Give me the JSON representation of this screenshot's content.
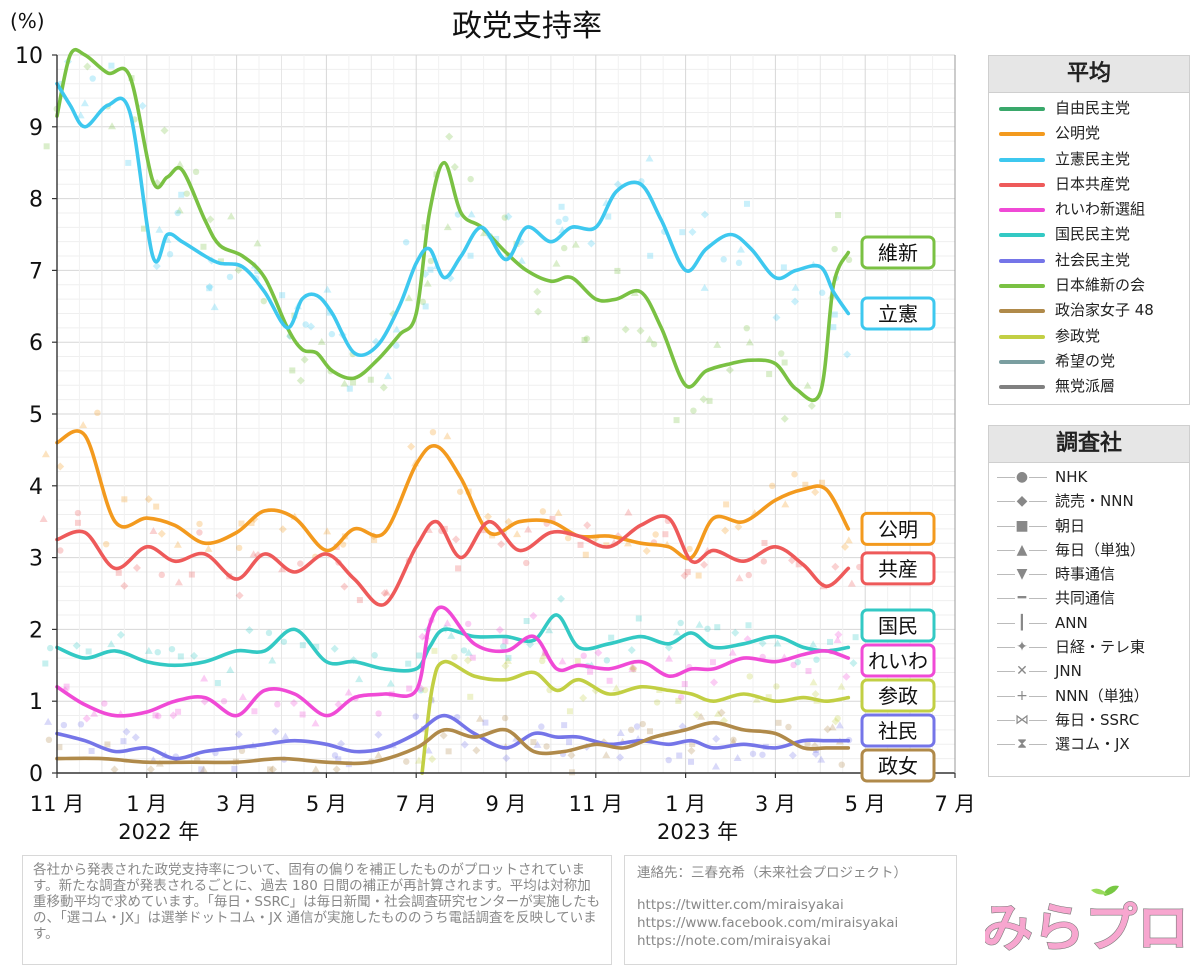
{
  "chart_data": {
    "type": "line",
    "title": "政党支持率",
    "ylabel": "(%)",
    "ylim": [
      0,
      10
    ],
    "yticks": [
      "0",
      "1",
      "2",
      "3",
      "4",
      "5",
      "6",
      "7",
      "8",
      "9",
      "10"
    ],
    "grid": true,
    "x_axis": {
      "range_months": [
        "2021-11",
        "2023-07"
      ],
      "tick_labels": [
        {
          "month": "2021-11",
          "label": "11 月"
        },
        {
          "month": "2022-01",
          "label": "1 月"
        },
        {
          "month": "2022-03",
          "label": "3 月"
        },
        {
          "month": "2022-05",
          "label": "5 月"
        },
        {
          "month": "2022-07",
          "label": "7 月"
        },
        {
          "month": "2022-09",
          "label": "9 月"
        },
        {
          "month": "2022-11",
          "label": "11 月"
        },
        {
          "month": "2023-01",
          "label": "1 月"
        },
        {
          "month": "2023-03",
          "label": "3 月"
        },
        {
          "month": "2023-05",
          "label": "5 月"
        },
        {
          "month": "2023-07",
          "label": "7 月"
        }
      ],
      "year_labels": [
        {
          "month": "2022-01",
          "label": "2022 年"
        },
        {
          "month": "2023-01",
          "label": "2023 年"
        }
      ]
    },
    "series": [
      {
        "name": "日本維新の会",
        "end_label": "維新",
        "color": "#7ac143",
        "x": [
          "2021-11-01",
          "2021-11-10",
          "2021-11-20",
          "2021-12-05",
          "2021-12-20",
          "2022-01-05",
          "2022-01-15",
          "2022-01-25",
          "2022-02-10",
          "2022-02-20",
          "2022-03-05",
          "2022-03-20",
          "2022-04-05",
          "2022-04-15",
          "2022-04-25",
          "2022-05-05",
          "2022-05-20",
          "2022-06-05",
          "2022-06-20",
          "2022-07-01",
          "2022-07-10",
          "2022-07-20",
          "2022-08-01",
          "2022-08-15",
          "2022-09-01",
          "2022-09-15",
          "2022-10-01",
          "2022-10-15",
          "2022-11-01",
          "2022-11-15",
          "2022-12-01",
          "2022-12-15",
          "2023-01-01",
          "2023-01-15",
          "2023-02-01",
          "2023-02-15",
          "2023-03-01",
          "2023-03-15",
          "2023-04-01",
          "2023-04-10",
          "2023-04-20"
        ],
        "values": [
          9.15,
          10.0,
          10.0,
          9.75,
          9.7,
          8.25,
          8.3,
          8.4,
          7.7,
          7.35,
          7.2,
          6.9,
          6.2,
          5.9,
          5.85,
          5.6,
          5.5,
          5.75,
          6.1,
          6.4,
          7.8,
          8.5,
          7.8,
          7.6,
          7.25,
          7.0,
          6.85,
          6.9,
          6.6,
          6.6,
          6.7,
          6.2,
          5.4,
          5.6,
          5.7,
          5.75,
          5.7,
          5.35,
          5.3,
          6.8,
          7.25
        ]
      },
      {
        "name": "立憲民主党",
        "end_label": "立憲",
        "color": "#3ec8ef",
        "x": [
          "2021-11-01",
          "2021-11-10",
          "2021-11-20",
          "2021-12-05",
          "2021-12-20",
          "2022-01-05",
          "2022-01-15",
          "2022-01-25",
          "2022-02-10",
          "2022-02-20",
          "2022-03-05",
          "2022-03-20",
          "2022-04-05",
          "2022-04-15",
          "2022-04-25",
          "2022-05-05",
          "2022-05-20",
          "2022-06-05",
          "2022-06-20",
          "2022-07-01",
          "2022-07-10",
          "2022-07-20",
          "2022-08-01",
          "2022-08-15",
          "2022-09-01",
          "2022-09-15",
          "2022-10-01",
          "2022-10-15",
          "2022-11-01",
          "2022-11-15",
          "2022-12-01",
          "2022-12-15",
          "2023-01-01",
          "2023-01-15",
          "2023-02-01",
          "2023-02-15",
          "2023-03-01",
          "2023-03-15",
          "2023-04-01",
          "2023-04-10",
          "2023-04-20"
        ],
        "values": [
          9.6,
          9.3,
          9.0,
          9.3,
          9.2,
          7.2,
          7.5,
          7.4,
          7.2,
          7.1,
          7.05,
          6.7,
          6.2,
          6.6,
          6.65,
          6.4,
          5.85,
          5.95,
          6.5,
          7.1,
          7.3,
          6.9,
          7.2,
          7.6,
          7.15,
          7.6,
          7.4,
          7.6,
          7.6,
          8.1,
          8.2,
          7.7,
          7.0,
          7.3,
          7.5,
          7.3,
          6.9,
          7.0,
          7.05,
          6.7,
          6.4
        ]
      },
      {
        "name": "公明党",
        "end_label": "公明",
        "color": "#f39a1e",
        "x": [
          "2021-11-01",
          "2021-11-20",
          "2021-12-10",
          "2022-01-01",
          "2022-01-20",
          "2022-02-10",
          "2022-03-01",
          "2022-03-20",
          "2022-04-10",
          "2022-05-01",
          "2022-05-20",
          "2022-06-10",
          "2022-07-01",
          "2022-07-15",
          "2022-08-01",
          "2022-08-20",
          "2022-09-10",
          "2022-10-01",
          "2022-10-20",
          "2022-11-10",
          "2022-12-01",
          "2022-12-20",
          "2023-01-05",
          "2023-01-20",
          "2023-02-10",
          "2023-03-01",
          "2023-03-20",
          "2023-04-05",
          "2023-04-20"
        ],
        "values": [
          4.6,
          4.7,
          3.5,
          3.55,
          3.45,
          3.2,
          3.35,
          3.65,
          3.55,
          3.1,
          3.4,
          3.35,
          4.3,
          4.55,
          4.1,
          3.35,
          3.5,
          3.5,
          3.3,
          3.3,
          3.2,
          3.15,
          3.0,
          3.55,
          3.5,
          3.8,
          3.95,
          3.95,
          3.4
        ]
      },
      {
        "name": "日本共産党",
        "end_label": "共産",
        "color": "#ee5a5a",
        "x": [
          "2021-11-01",
          "2021-11-20",
          "2021-12-10",
          "2022-01-01",
          "2022-01-20",
          "2022-02-10",
          "2022-03-01",
          "2022-03-20",
          "2022-04-10",
          "2022-05-01",
          "2022-05-20",
          "2022-06-10",
          "2022-07-01",
          "2022-07-15",
          "2022-08-01",
          "2022-08-20",
          "2022-09-10",
          "2022-10-01",
          "2022-10-20",
          "2022-11-10",
          "2022-12-01",
          "2022-12-20",
          "2023-01-05",
          "2023-01-20",
          "2023-02-10",
          "2023-03-01",
          "2023-03-20",
          "2023-04-05",
          "2023-04-20"
        ],
        "values": [
          3.25,
          3.35,
          2.85,
          3.15,
          2.95,
          3.05,
          2.7,
          3.05,
          2.8,
          3.05,
          2.7,
          2.35,
          3.15,
          3.5,
          3.0,
          3.5,
          3.1,
          3.35,
          3.3,
          3.15,
          3.45,
          3.55,
          2.95,
          3.1,
          2.95,
          3.15,
          2.9,
          2.6,
          2.85
        ]
      },
      {
        "name": "国民民主党",
        "end_label": "国民",
        "color": "#33c9c4",
        "x": [
          "2021-11-01",
          "2021-11-20",
          "2021-12-10",
          "2022-01-01",
          "2022-01-20",
          "2022-02-10",
          "2022-03-01",
          "2022-03-20",
          "2022-04-10",
          "2022-05-01",
          "2022-05-20",
          "2022-06-10",
          "2022-07-01",
          "2022-07-10",
          "2022-07-20",
          "2022-08-10",
          "2022-09-01",
          "2022-09-20",
          "2022-10-05",
          "2022-10-20",
          "2022-11-10",
          "2022-12-01",
          "2022-12-20",
          "2023-01-05",
          "2023-01-20",
          "2023-02-10",
          "2023-03-01",
          "2023-03-20",
          "2023-04-05",
          "2023-04-20"
        ],
        "values": [
          1.75,
          1.6,
          1.7,
          1.55,
          1.5,
          1.55,
          1.7,
          1.7,
          2.0,
          1.55,
          1.55,
          1.45,
          1.45,
          1.75,
          2.0,
          1.9,
          1.9,
          1.85,
          2.2,
          1.75,
          1.8,
          1.9,
          1.8,
          1.95,
          1.75,
          1.8,
          1.9,
          1.75,
          1.7,
          1.75
        ]
      },
      {
        "name": "れいわ新選組",
        "end_label": "れいわ",
        "color": "#f04ad6",
        "x": [
          "2021-11-01",
          "2021-11-20",
          "2021-12-10",
          "2022-01-01",
          "2022-01-20",
          "2022-02-10",
          "2022-03-01",
          "2022-03-20",
          "2022-04-10",
          "2022-05-01",
          "2022-05-20",
          "2022-06-10",
          "2022-07-01",
          "2022-07-10",
          "2022-07-20",
          "2022-08-10",
          "2022-09-01",
          "2022-09-20",
          "2022-10-05",
          "2022-10-20",
          "2022-11-10",
          "2022-12-01",
          "2022-12-20",
          "2023-01-05",
          "2023-01-20",
          "2023-02-10",
          "2023-03-01",
          "2023-03-20",
          "2023-04-05",
          "2023-04-20"
        ],
        "values": [
          1.2,
          0.95,
          0.8,
          0.85,
          1.0,
          1.05,
          0.8,
          1.15,
          1.1,
          0.8,
          1.05,
          1.1,
          1.15,
          2.05,
          2.3,
          1.8,
          1.7,
          1.9,
          1.45,
          1.5,
          1.45,
          1.55,
          1.35,
          1.45,
          1.45,
          1.6,
          1.55,
          1.65,
          1.7,
          1.6
        ]
      },
      {
        "name": "参政党",
        "end_label": "参政",
        "color": "#c2cf44",
        "x": [
          "2022-07-05",
          "2022-07-12",
          "2022-07-20",
          "2022-08-10",
          "2022-09-01",
          "2022-09-20",
          "2022-10-05",
          "2022-10-20",
          "2022-11-10",
          "2022-12-01",
          "2022-12-20",
          "2023-01-05",
          "2023-01-20",
          "2023-02-10",
          "2023-03-01",
          "2023-03-20",
          "2023-04-05",
          "2023-04-20"
        ],
        "values": [
          0.0,
          1.2,
          1.55,
          1.35,
          1.3,
          1.4,
          1.15,
          1.3,
          1.1,
          1.2,
          1.15,
          1.1,
          1.0,
          1.1,
          1.0,
          1.05,
          1.0,
          1.05
        ]
      },
      {
        "name": "社会民主党",
        "end_label": "社民",
        "color": "#7575e8",
        "x": [
          "2021-11-01",
          "2021-11-20",
          "2021-12-10",
          "2022-01-01",
          "2022-01-20",
          "2022-02-10",
          "2022-03-01",
          "2022-03-20",
          "2022-04-10",
          "2022-05-01",
          "2022-05-20",
          "2022-06-10",
          "2022-07-01",
          "2022-07-20",
          "2022-08-10",
          "2022-09-01",
          "2022-09-20",
          "2022-10-05",
          "2022-10-20",
          "2022-11-10",
          "2022-12-01",
          "2022-12-20",
          "2023-01-05",
          "2023-01-20",
          "2023-02-10",
          "2023-03-01",
          "2023-03-20",
          "2023-04-05",
          "2023-04-20"
        ],
        "values": [
          0.55,
          0.45,
          0.3,
          0.35,
          0.2,
          0.3,
          0.35,
          0.4,
          0.45,
          0.4,
          0.3,
          0.35,
          0.55,
          0.8,
          0.55,
          0.35,
          0.55,
          0.5,
          0.5,
          0.4,
          0.45,
          0.4,
          0.45,
          0.35,
          0.4,
          0.35,
          0.45,
          0.45,
          0.45
        ]
      },
      {
        "name": "政治家女子48",
        "end_label": "政女",
        "color": "#b08a4a",
        "x": [
          "2021-11-01",
          "2021-12-01",
          "2022-01-01",
          "2022-02-01",
          "2022-03-01",
          "2022-04-01",
          "2022-05-01",
          "2022-06-01",
          "2022-07-01",
          "2022-07-20",
          "2022-08-10",
          "2022-09-01",
          "2022-09-20",
          "2022-10-10",
          "2022-11-01",
          "2022-11-20",
          "2022-12-10",
          "2023-01-01",
          "2023-01-20",
          "2023-02-10",
          "2023-03-01",
          "2023-03-20",
          "2023-04-05",
          "2023-04-20"
        ],
        "values": [
          0.2,
          0.2,
          0.15,
          0.15,
          0.15,
          0.2,
          0.15,
          0.15,
          0.35,
          0.6,
          0.5,
          0.6,
          0.3,
          0.3,
          0.4,
          0.35,
          0.5,
          0.6,
          0.7,
          0.6,
          0.55,
          0.35,
          0.35,
          0.35
        ]
      }
    ],
    "end_labels_order": [
      "維新",
      "立憲",
      "公明",
      "共産",
      "国民",
      "れいわ",
      "参政",
      "社民",
      "政女"
    ]
  },
  "legend": {
    "title": "平均",
    "items": [
      {
        "label": "自由民主党",
        "color": "#3aa86b"
      },
      {
        "label": "公明党",
        "color": "#f39a1e"
      },
      {
        "label": "立憲民主党",
        "color": "#3ec8ef"
      },
      {
        "label": "日本共産党",
        "color": "#ee5a5a"
      },
      {
        "label": "れいわ新選組",
        "color": "#f04ad6"
      },
      {
        "label": "国民民主党",
        "color": "#33c9c4"
      },
      {
        "label": "社会民主党",
        "color": "#7575e8"
      },
      {
        "label": "日本維新の会",
        "color": "#7ac143"
      },
      {
        "label": "政治家女子 48",
        "color": "#b08a4a"
      },
      {
        "label": "参政党",
        "color": "#c2cf44"
      },
      {
        "label": "希望の党",
        "color": "#7a9ea0"
      },
      {
        "label": "無党派層",
        "color": "#808080"
      }
    ]
  },
  "pollsters": {
    "title": "調査社",
    "items": [
      {
        "label": "NHK",
        "icon": "circle-icon"
      },
      {
        "label": "読売・NNN",
        "icon": "diamond-icon"
      },
      {
        "label": "朝日",
        "icon": "square-icon"
      },
      {
        "label": "毎日（単独）",
        "icon": "triangle-up-icon"
      },
      {
        "label": "時事通信",
        "icon": "triangle-down-icon"
      },
      {
        "label": "共同通信",
        "icon": "dash-icon"
      },
      {
        "label": "ANN",
        "icon": "bar-icon"
      },
      {
        "label": "日経・テレ東",
        "icon": "star4-icon"
      },
      {
        "label": "JNN",
        "icon": "cross-icon"
      },
      {
        "label": "NNN（単独）",
        "icon": "plus-icon"
      },
      {
        "label": "毎日・SSRC",
        "icon": "bowtie-icon"
      },
      {
        "label": "選コム・JX",
        "icon": "hourglass-icon"
      }
    ]
  },
  "note": "各社から発表された政党支持率について、固有の偏りを補正したものがプロットされています。新たな調査が発表されるごとに、過去 180 日間の補正が再計算されます。平均は対称加重移動平均で求めています。「毎日・SSRC」は毎日新聞・社会調査研究センターが実施したもの、「選コム・JX」は選挙ドットコム・JX 通信が実施したもののうち電話調査を反映しています。",
  "contact": {
    "line": "連絡先：三春充希（未来社会プロジェクト）",
    "links": [
      "https://twitter.com/miraisyakai",
      "https://www.facebook.com/miraisyakai",
      "https://note.com/miraisyakai"
    ]
  },
  "logo": {
    "text": "みらプロ"
  }
}
